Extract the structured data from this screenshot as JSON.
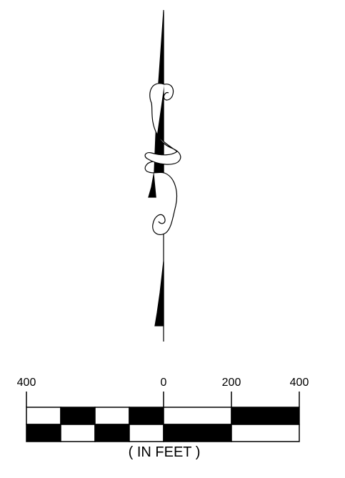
{
  "north_arrow": {
    "icon": "north-arrow-icon",
    "color": "#000000"
  },
  "scale_bar": {
    "icon": "graphic-scale-bar",
    "labels": [
      "400",
      "0",
      "200",
      "400"
    ],
    "unit_label": "( IN FEET )",
    "colors": {
      "dark": "#000000",
      "light": "#ffffff"
    }
  }
}
